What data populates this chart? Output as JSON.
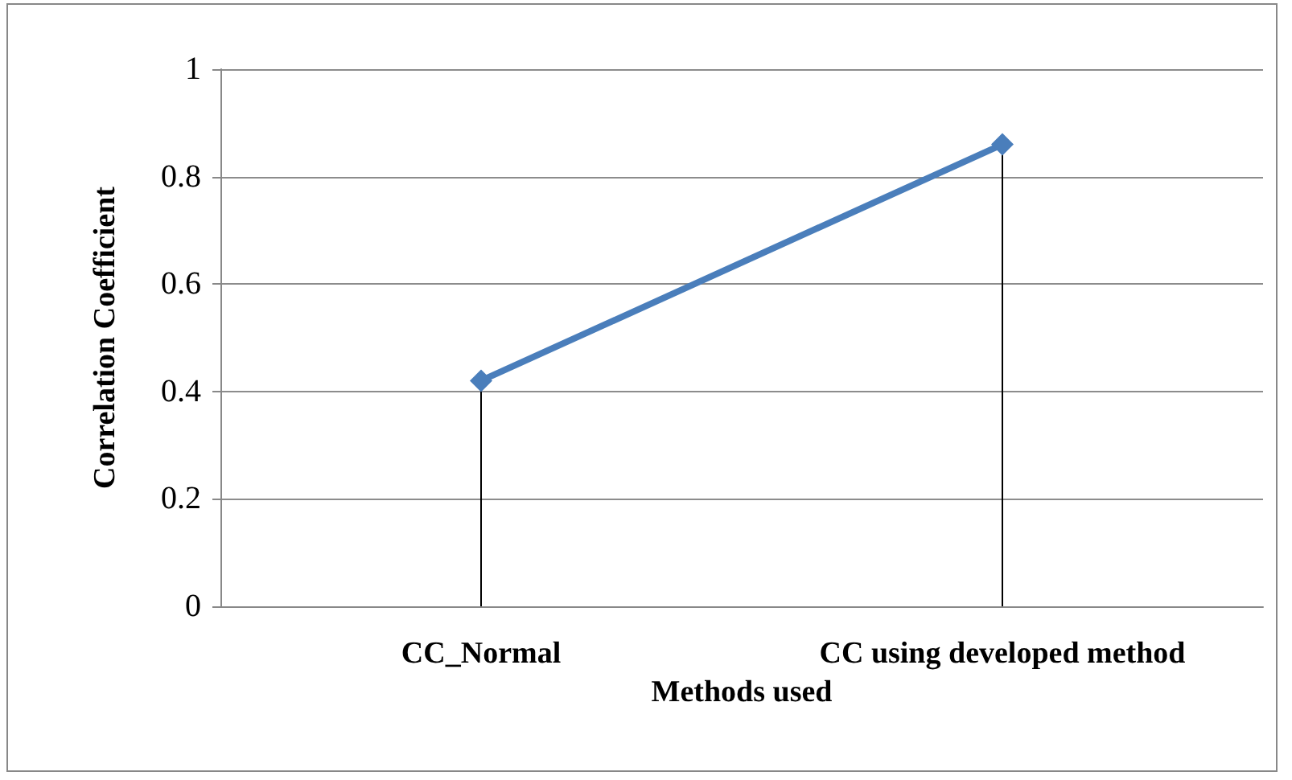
{
  "chart_data": {
    "type": "line",
    "xlabel": "Methods used",
    "ylabel": "Correlation Coefficient",
    "categories": [
      "CC_Normal",
      "CC using developed method"
    ],
    "series": [
      {
        "color": "#4a7ebb",
        "values": [
          0.42,
          0.86
        ],
        "errors": [
          [
            0,
            0.42
          ],
          [
            0,
            0.86
          ]
        ]
      }
    ],
    "ylim": [
      0,
      1
    ],
    "yticks": [
      0,
      0.2,
      0.4,
      0.6,
      0.8,
      1
    ],
    "grid": "y",
    "marker": "diamond",
    "line_style": "solid"
  }
}
